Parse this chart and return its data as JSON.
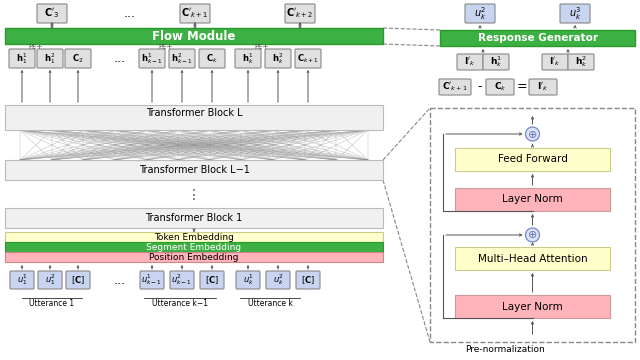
{
  "bg_color": "#ffffff",
  "flow_module_color": "#3cb043",
  "flow_module_text": "Flow Module",
  "response_gen_color": "#3cb043",
  "response_gen_text": "Response Generator",
  "token_emb_color": "#ffffcc",
  "segment_emb_color": "#3cb043",
  "position_emb_color": "#ffb3ba",
  "feed_forward_color": "#ffffcc",
  "layer_norm_color": "#ffb3ba",
  "multi_head_color": "#ffffcc",
  "input_box_color": "#c8d4f0",
  "output_box_color": "#e0e0e0",
  "pre_norm_text": "Pre-normalization",
  "utterance_labels": [
    "Utterance 1",
    "Utterance k−1",
    "Utterance k"
  ],
  "green_dark": "#2a9a2a",
  "gray_line": "#999999",
  "arrow_color": "#555555"
}
